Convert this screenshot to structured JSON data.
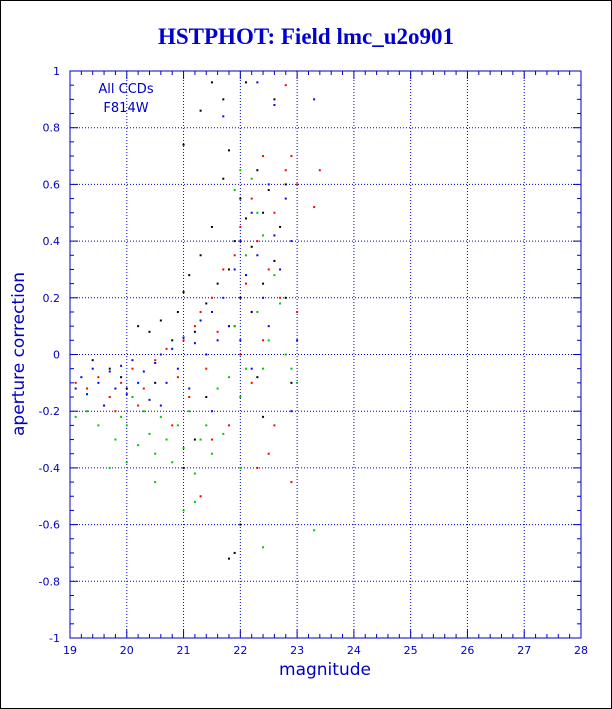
{
  "chart_data": {
    "type": "scatter",
    "title": "HSTPHOT: Field lmc_u2o901",
    "xlabel": "magnitude",
    "ylabel": "aperture correction",
    "xlim": [
      19,
      28
    ],
    "ylim": [
      -1,
      1
    ],
    "x_ticks": [
      "19",
      "20",
      "21",
      "22",
      "23",
      "24",
      "25",
      "26",
      "27",
      "28"
    ],
    "y_ticks": [
      "1",
      "0.8",
      "0.6",
      "0.4",
      "0.2",
      "0",
      "-0.2",
      "-0.4",
      "-0.6",
      "-0.8",
      "-1"
    ],
    "grid": true,
    "annotations": [
      "All CCDs",
      "F814W"
    ],
    "series_colors": [
      "#000000",
      "#ff0000",
      "#00c800",
      "#0000ff"
    ],
    "series": [
      {
        "values": [
          [
            19.4,
            -0.02
          ],
          [
            19.7,
            -0.05
          ],
          [
            19.9,
            -0.08
          ],
          [
            20.2,
            0.1
          ],
          [
            20.4,
            0.08
          ],
          [
            20.6,
            0.12
          ],
          [
            20.8,
            0.05
          ],
          [
            20.9,
            0.15
          ],
          [
            21.0,
            0.22
          ],
          [
            21.0,
            0.74
          ],
          [
            21.1,
            0.28
          ],
          [
            21.2,
            0.08
          ],
          [
            21.3,
            0.86
          ],
          [
            21.3,
            0.35
          ],
          [
            21.4,
            0.18
          ],
          [
            21.5,
            0.96
          ],
          [
            21.5,
            0.45
          ],
          [
            21.6,
            0.25
          ],
          [
            21.7,
            0.9
          ],
          [
            21.7,
            0.62
          ],
          [
            21.8,
            0.72
          ],
          [
            21.8,
            0.3
          ],
          [
            21.9,
            0.4
          ],
          [
            21.9,
            0.1
          ],
          [
            22.0,
            0.55
          ],
          [
            22.0,
            0.2
          ],
          [
            22.1,
            0.96
          ],
          [
            22.1,
            0.48
          ],
          [
            22.2,
            0.38
          ],
          [
            22.2,
            0.15
          ],
          [
            22.3,
            0.65
          ],
          [
            22.3,
            -0.08
          ],
          [
            22.4,
            0.5
          ],
          [
            22.4,
            0.25
          ],
          [
            22.5,
            0.58
          ],
          [
            22.6,
            0.9
          ],
          [
            22.6,
            0.33
          ],
          [
            22.7,
            0.45
          ],
          [
            22.8,
            0.6
          ],
          [
            22.8,
            0.2
          ],
          [
            21.0,
            -0.4
          ],
          [
            21.2,
            -0.3
          ],
          [
            22.0,
            -0.6
          ],
          [
            21.9,
            -0.7
          ],
          [
            21.8,
            -0.72
          ],
          [
            22.4,
            -0.22
          ],
          [
            22.9,
            -0.1
          ],
          [
            21.4,
            -0.15
          ],
          [
            20.5,
            -0.1
          ],
          [
            20.0,
            -0.12
          ]
        ]
      },
      {
        "values": [
          [
            19.1,
            -0.1
          ],
          [
            19.3,
            -0.12
          ],
          [
            19.5,
            -0.08
          ],
          [
            19.7,
            -0.15
          ],
          [
            19.9,
            -0.1
          ],
          [
            20.1,
            -0.05
          ],
          [
            20.3,
            -0.12
          ],
          [
            20.5,
            -0.02
          ],
          [
            20.7,
            0.02
          ],
          [
            20.9,
            -0.08
          ],
          [
            21.0,
            0.05
          ],
          [
            21.1,
            -0.15
          ],
          [
            21.2,
            0.1
          ],
          [
            21.3,
            0.15
          ],
          [
            21.4,
            -0.05
          ],
          [
            21.5,
            0.2
          ],
          [
            21.6,
            0.08
          ],
          [
            21.7,
            0.3
          ],
          [
            21.8,
            0.1
          ],
          [
            21.9,
            0.35
          ],
          [
            22.0,
            0.0
          ],
          [
            22.0,
            0.45
          ],
          [
            22.1,
            0.25
          ],
          [
            22.2,
            0.55
          ],
          [
            22.2,
            -0.1
          ],
          [
            22.3,
            0.4
          ],
          [
            22.4,
            0.7
          ],
          [
            22.4,
            0.05
          ],
          [
            22.5,
            0.3
          ],
          [
            22.6,
            0.5
          ],
          [
            22.6,
            -0.25
          ],
          [
            22.7,
            0.2
          ],
          [
            22.8,
            0.95
          ],
          [
            22.8,
            0.65
          ],
          [
            22.9,
            0.7
          ],
          [
            23.0,
            0.6
          ],
          [
            23.0,
            0.15
          ],
          [
            22.5,
            -0.35
          ],
          [
            22.3,
            -0.4
          ],
          [
            21.8,
            -0.25
          ],
          [
            21.5,
            -0.3
          ],
          [
            20.8,
            -0.25
          ],
          [
            20.2,
            -0.18
          ],
          [
            19.8,
            -0.2
          ],
          [
            23.4,
            0.65
          ],
          [
            23.3,
            0.52
          ],
          [
            22.9,
            -0.45
          ],
          [
            21.3,
            -0.5
          ]
        ]
      },
      {
        "values": [
          [
            19.1,
            -0.22
          ],
          [
            19.3,
            -0.2
          ],
          [
            19.5,
            -0.25
          ],
          [
            19.6,
            -0.18
          ],
          [
            19.8,
            -0.3
          ],
          [
            19.9,
            -0.22
          ],
          [
            20.0,
            -0.25
          ],
          [
            20.1,
            -0.15
          ],
          [
            20.2,
            -0.32
          ],
          [
            20.3,
            -0.2
          ],
          [
            20.4,
            -0.28
          ],
          [
            20.5,
            -0.35
          ],
          [
            20.6,
            -0.22
          ],
          [
            20.7,
            -0.3
          ],
          [
            20.8,
            -0.38
          ],
          [
            20.9,
            -0.25
          ],
          [
            21.0,
            -0.33
          ],
          [
            21.1,
            -0.2
          ],
          [
            21.2,
            -0.42
          ],
          [
            21.3,
            -0.3
          ],
          [
            21.4,
            -0.25
          ],
          [
            21.5,
            -0.35
          ],
          [
            21.6,
            -0.12
          ],
          [
            21.7,
            -0.28
          ],
          [
            21.8,
            -0.08
          ],
          [
            21.9,
            0.1
          ],
          [
            22.0,
            -0.15
          ],
          [
            22.1,
            0.35
          ],
          [
            22.1,
            -0.05
          ],
          [
            22.2,
            0.62
          ],
          [
            22.3,
            0.5
          ],
          [
            22.3,
            0.15
          ],
          [
            22.4,
            0.42
          ],
          [
            22.4,
            -0.05
          ],
          [
            22.5,
            0.05
          ],
          [
            22.6,
            0.28
          ],
          [
            22.7,
            0.18
          ],
          [
            22.8,
            0.0
          ],
          [
            22.9,
            -0.05
          ],
          [
            23.0,
            -0.1
          ],
          [
            20.0,
            -0.38
          ],
          [
            19.7,
            -0.4
          ],
          [
            21.2,
            -0.52
          ],
          [
            21.0,
            -0.55
          ],
          [
            22.4,
            -0.68
          ],
          [
            23.3,
            -0.62
          ],
          [
            22.0,
            -0.4
          ],
          [
            20.5,
            -0.45
          ],
          [
            21.9,
            0.58
          ],
          [
            22.0,
            0.65
          ]
        ]
      },
      {
        "values": [
          [
            19.1,
            -0.12
          ],
          [
            19.2,
            -0.08
          ],
          [
            19.3,
            -0.14
          ],
          [
            19.4,
            -0.05
          ],
          [
            19.5,
            -0.1
          ],
          [
            19.6,
            -0.18
          ],
          [
            19.7,
            -0.06
          ],
          [
            19.8,
            -0.12
          ],
          [
            19.9,
            -0.04
          ],
          [
            20.0,
            -0.14
          ],
          [
            20.1,
            -0.02
          ],
          [
            20.2,
            -0.1
          ],
          [
            20.3,
            -0.06
          ],
          [
            20.4,
            -0.16
          ],
          [
            20.5,
            -0.03
          ],
          [
            20.6,
            0.0
          ],
          [
            20.7,
            -0.1
          ],
          [
            20.8,
            0.02
          ],
          [
            20.9,
            -0.05
          ],
          [
            21.0,
            0.06
          ],
          [
            21.1,
            -0.12
          ],
          [
            21.2,
            0.04
          ],
          [
            21.3,
            0.12
          ],
          [
            21.4,
            0.0
          ],
          [
            21.5,
            0.15
          ],
          [
            21.6,
            0.05
          ],
          [
            21.7,
            0.2
          ],
          [
            21.7,
            0.84
          ],
          [
            21.8,
            0.1
          ],
          [
            21.9,
            0.3
          ],
          [
            22.0,
            0.05
          ],
          [
            22.0,
            0.4
          ],
          [
            22.1,
            0.28
          ],
          [
            22.2,
            0.5
          ],
          [
            22.3,
            0.35
          ],
          [
            22.3,
            0.96
          ],
          [
            22.4,
            0.2
          ],
          [
            22.5,
            0.6
          ],
          [
            22.5,
            0.1
          ],
          [
            22.6,
            0.42
          ],
          [
            22.6,
            0.88
          ],
          [
            22.7,
            0.3
          ],
          [
            22.8,
            0.55
          ],
          [
            22.9,
            0.4
          ],
          [
            23.0,
            0.05
          ],
          [
            23.3,
            0.9
          ],
          [
            22.9,
            -0.2
          ],
          [
            22.2,
            -0.05
          ],
          [
            21.5,
            -0.2
          ],
          [
            20.6,
            -0.18
          ]
        ]
      }
    ]
  }
}
